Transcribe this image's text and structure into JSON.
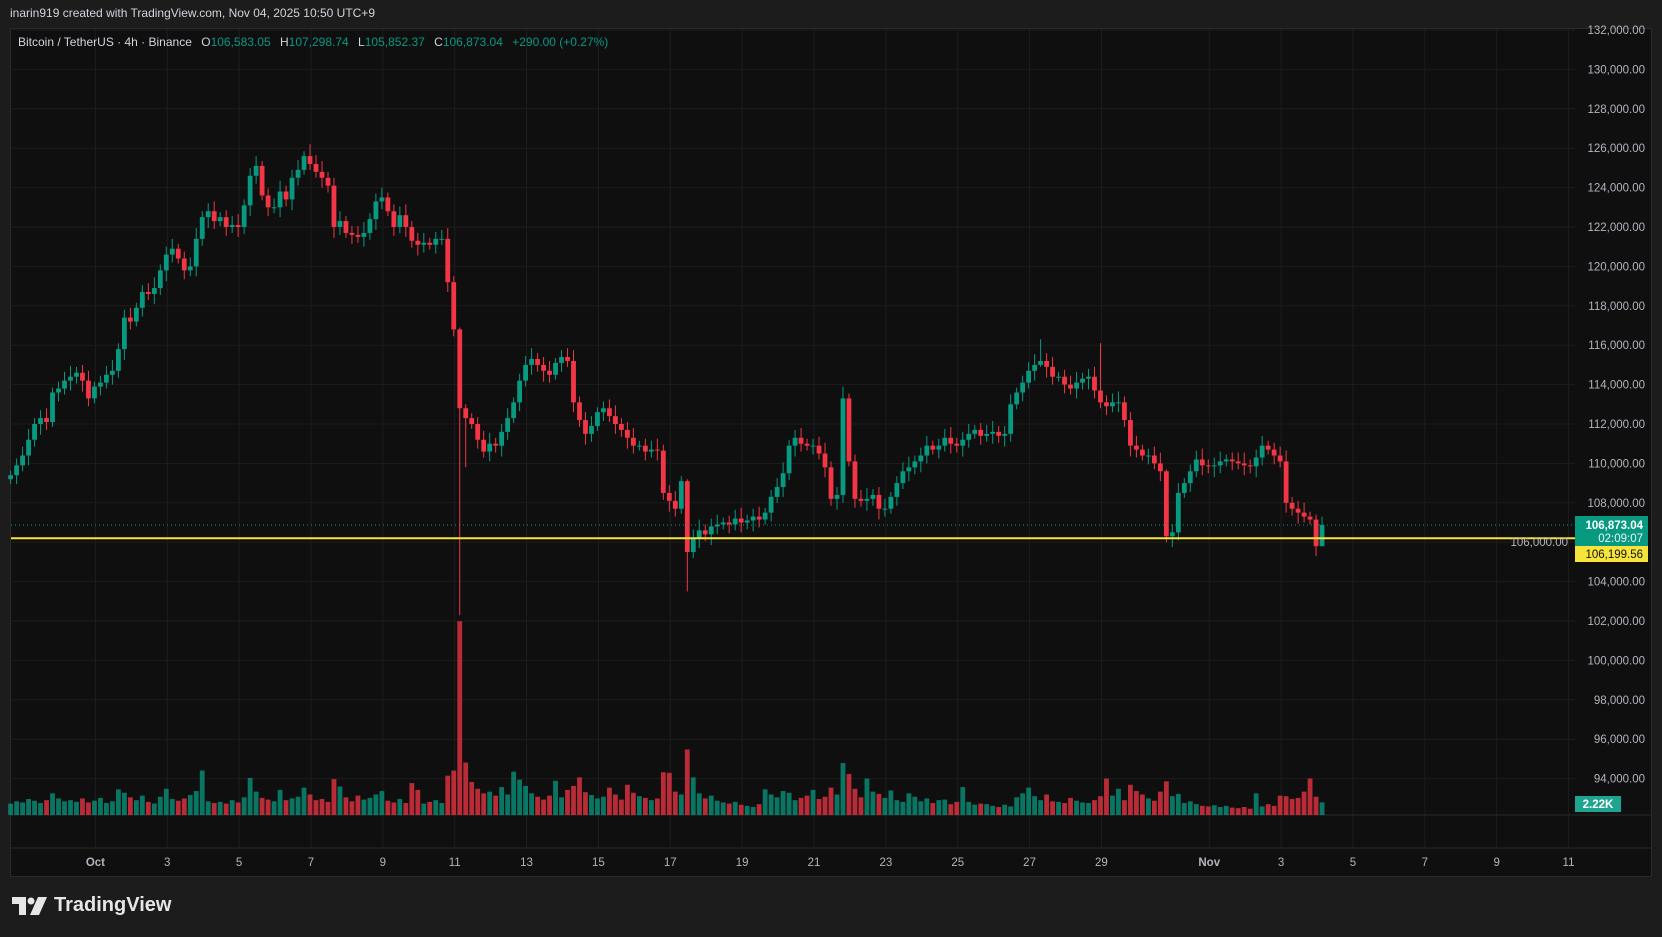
{
  "caption": "inarin919 created with TradingView.com, Nov 04, 2025 10:50 UTC+9",
  "legend": {
    "symbol": "Bitcoin / TetherUS · 4h · Binance",
    "o_label": "O",
    "o": "106,583.05",
    "h_label": "H",
    "h": "107,298.74",
    "l_label": "L",
    "l": "105,852.37",
    "c_label": "C",
    "c": "106,873.04",
    "change": "+290.00 (+0.27%)"
  },
  "brand": "TradingView",
  "colors": {
    "up": "#089981",
    "down": "#f23645",
    "level": "#f7e43a",
    "background": "#0f0f0f"
  },
  "chart_data": {
    "type": "candlestick",
    "title": "Bitcoin / TetherUS · 4h · Binance",
    "price_unit": "thousand USDT",
    "ylim": [
      93,
      132.1
    ],
    "y_ticks": [
      132000,
      130000,
      128000,
      126000,
      124000,
      122000,
      120000,
      118000,
      116000,
      114000,
      112000,
      110000,
      108000,
      106000,
      104000,
      102000,
      100000,
      98000,
      96000,
      94000
    ],
    "x_ticks": [
      {
        "label": "Oct",
        "day": 0
      },
      {
        "label": "3",
        "day": 2
      },
      {
        "label": "5",
        "day": 4
      },
      {
        "label": "7",
        "day": 6
      },
      {
        "label": "9",
        "day": 8
      },
      {
        "label": "11",
        "day": 10
      },
      {
        "label": "13",
        "day": 12
      },
      {
        "label": "15",
        "day": 14
      },
      {
        "label": "17",
        "day": 16
      },
      {
        "label": "19",
        "day": 18
      },
      {
        "label": "21",
        "day": 20
      },
      {
        "label": "23",
        "day": 22
      },
      {
        "label": "25",
        "day": 24
      },
      {
        "label": "27",
        "day": 26
      },
      {
        "label": "29",
        "day": 28
      },
      {
        "label": "Nov",
        "day": 31
      },
      {
        "label": "3",
        "day": 33
      },
      {
        "label": "5",
        "day": 35
      },
      {
        "label": "7",
        "day": 37
      },
      {
        "label": "9",
        "day": 39
      },
      {
        "label": "11",
        "day": 41
      }
    ],
    "first_candle_day": -2.36,
    "candles_per_day": 6,
    "first_open": 109.2,
    "closes": [
      109.4,
      109.9,
      110.4,
      111.2,
      112.0,
      112.3,
      112.1,
      113.6,
      113.8,
      114.2,
      114.4,
      114.6,
      114.2,
      113.3,
      113.9,
      114.1,
      114.5,
      114.7,
      115.8,
      117.4,
      117.2,
      117.9,
      118.7,
      118.6,
      118.9,
      119.8,
      120.6,
      120.9,
      120.4,
      119.8,
      120.0,
      121.4,
      122.5,
      122.8,
      122.3,
      122.5,
      122.0,
      122.1,
      122.0,
      123.1,
      124.6,
      125.1,
      123.6,
      123.0,
      123.0,
      123.8,
      123.4,
      124.5,
      124.9,
      125.6,
      125.2,
      124.8,
      124.5,
      124.1,
      122.0,
      122.3,
      121.7,
      121.6,
      121.5,
      121.7,
      122.4,
      123.3,
      123.5,
      122.8,
      122.0,
      122.6,
      122.0,
      121.3,
      121.1,
      121.2,
      121.1,
      121.4,
      121.4,
      119.2,
      116.8,
      112.8,
      112.3,
      112.0,
      111.2,
      110.6,
      111.0,
      110.9,
      111.6,
      112.3,
      113.1,
      114.2,
      115.0,
      115.3,
      115.0,
      114.7,
      114.5,
      115.1,
      115.4,
      115.2,
      113.1,
      112.2,
      111.5,
      111.9,
      112.6,
      112.8,
      112.4,
      112.0,
      111.7,
      111.3,
      110.9,
      110.9,
      110.6,
      110.7,
      110.65,
      108.5,
      108.1,
      107.7,
      109.1,
      105.5,
      106.2,
      106.6,
      106.4,
      106.8,
      106.9,
      107.0,
      106.9,
      107.2,
      107.0,
      107.1,
      107.3,
      107.15,
      107.5,
      108.3,
      108.8,
      109.5,
      110.9,
      111.3,
      111.0,
      110.9,
      110.9,
      110.5,
      109.8,
      108.2,
      108.4,
      113.3,
      110.1,
      108.2,
      108.1,
      108.2,
      108.4,
      107.7,
      107.7,
      108.3,
      109.0,
      109.6,
      109.8,
      110.1,
      110.4,
      110.9,
      110.7,
      110.9,
      111.3,
      111.0,
      110.9,
      111.2,
      111.5,
      111.7,
      111.4,
      111.5,
      111.6,
      111.4,
      111.5,
      113.0,
      113.6,
      114.1,
      114.7,
      115.0,
      115.2,
      114.9,
      114.4,
      114.4,
      114.0,
      113.8,
      114.1,
      114.3,
      114.4,
      113.7,
      113.1,
      112.9,
      113.1,
      113.1,
      112.2,
      110.9,
      110.7,
      110.4,
      110.4,
      110.0,
      109.6,
      106.3,
      106.5,
      108.5,
      109.0,
      109.6,
      110.2,
      109.9,
      109.85,
      109.9,
      110.1,
      110.2,
      110.1,
      110.0,
      109.9,
      109.85,
      110.3,
      110.9,
      110.7,
      110.4,
      110.1,
      108.0,
      107.7,
      107.5,
      107.3,
      107.15,
      105.8,
      106.87
    ],
    "wick_overrides": {
      "50": [
        126.2,
        124.9
      ],
      "75": [
        116.9,
        102.3
      ],
      "76": [
        113.0,
        109.8
      ],
      "113": [
        109.2,
        103.5
      ],
      "139": [
        113.9,
        108.0
      ],
      "172": [
        116.3,
        114.9
      ],
      "182": [
        116.1,
        112.8
      ],
      "193": [
        109.7,
        106.0
      ],
      "216": [
        108.0,
        107.0
      ],
      "218": [
        107.4,
        105.3
      ],
      "219": [
        107.3,
        105.85
      ]
    },
    "volume_unit": "K",
    "volumes": [
      2.0,
      2.4,
      2.2,
      2.8,
      2.5,
      2.1,
      2.6,
      3.8,
      2.9,
      2.4,
      2.6,
      2.3,
      2.9,
      2.2,
      2.5,
      3.0,
      2.1,
      2.4,
      4.5,
      3.9,
      3.1,
      2.6,
      3.4,
      2.3,
      2.0,
      3.2,
      4.6,
      2.8,
      2.5,
      2.9,
      3.5,
      4.2,
      7.8,
      2.4,
      2.1,
      2.3,
      2.0,
      2.6,
      2.2,
      3.1,
      6.5,
      4.1,
      3.0,
      2.7,
      2.4,
      4.4,
      2.6,
      2.9,
      3.2,
      4.8,
      3.6,
      2.6,
      2.8,
      2.3,
      6.3,
      5.0,
      3.1,
      2.4,
      3.4,
      2.7,
      3.0,
      3.6,
      4.2,
      2.5,
      2.2,
      2.8,
      2.1,
      5.6,
      4.4,
      2.0,
      2.3,
      2.6,
      2.1,
      6.9,
      7.8,
      34.0,
      9.2,
      5.8,
      4.6,
      3.8,
      4.1,
      3.4,
      4.9,
      3.6,
      7.6,
      6.2,
      5.1,
      3.8,
      3.2,
      2.7,
      3.4,
      6.0,
      3.1,
      4.4,
      5.1,
      6.6,
      4.0,
      3.5,
      2.9,
      3.2,
      4.8,
      3.6,
      2.7,
      5.3,
      3.9,
      3.3,
      3.0,
      2.6,
      2.9,
      7.5,
      7.4,
      4.1,
      3.6,
      11.5,
      6.6,
      3.8,
      2.9,
      3.4,
      2.5,
      2.2,
      2.0,
      2.3,
      1.8,
      1.6,
      1.4,
      1.9,
      4.5,
      3.6,
      3.1,
      4.2,
      3.9,
      2.6,
      3.0,
      3.4,
      4.4,
      2.8,
      3.2,
      4.8,
      3.6,
      9.1,
      7.2,
      4.6,
      3.1,
      6.4,
      4.1,
      3.7,
      3.0,
      4.3,
      2.6,
      2.3,
      3.8,
      3.2,
      2.4,
      2.9,
      2.1,
      2.6,
      2.7,
      1.9,
      2.3,
      4.9,
      2.3,
      1.8,
      2.0,
      1.9,
      1.6,
      1.4,
      1.8,
      1.5,
      3.1,
      3.8,
      4.8,
      3.3,
      2.6,
      3.6,
      2.4,
      2.3,
      2.1,
      3.0,
      2.5,
      2.2,
      2.1,
      2.6,
      3.3,
      6.4,
      3.4,
      4.6,
      2.6,
      5.3,
      4.2,
      3.6,
      2.9,
      2.5,
      4.1,
      5.9,
      3.3,
      3.7,
      2.1,
      2.4,
      1.9,
      1.6,
      1.5,
      1.7,
      1.4,
      1.6,
      1.3,
      1.2,
      1.4,
      1.1,
      3.8,
      1.5,
      1.9,
      1.6,
      3.4,
      3.3,
      2.8,
      3.0,
      4.1,
      6.4,
      3.2,
      2.22
    ],
    "last_price": 106873.04,
    "last_price_label": "106,873.04",
    "countdown": "02:09:07",
    "horizontal_level": 106199.56,
    "horizontal_level_label": "106,199.56",
    "last_volume_label": "2.22K"
  }
}
